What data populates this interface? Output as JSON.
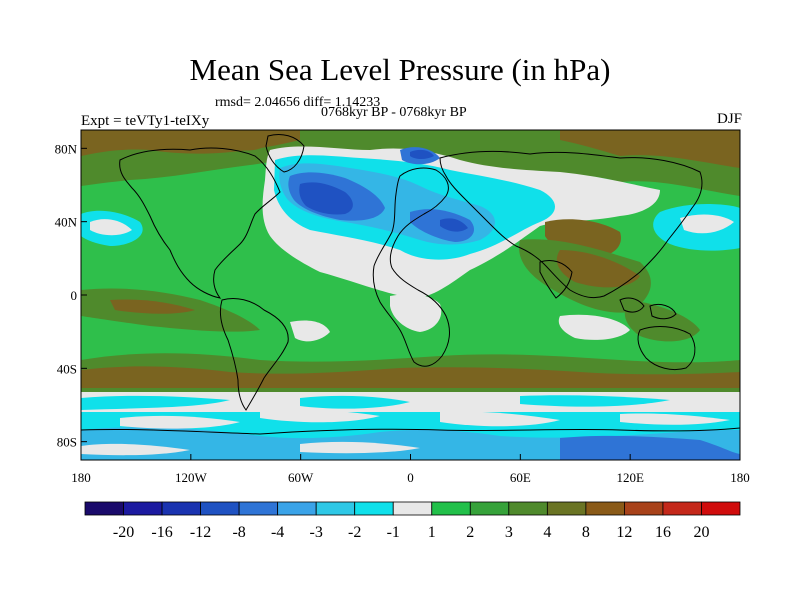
{
  "title": "Mean Sea Level Pressure (in hPa)",
  "stats": "rmsd= 2.04656 diff= 1.14233",
  "experiment": "Expt = teVTy1-teIXy",
  "period": "0768kyr BP - 0768kyr BP",
  "season": "DJF",
  "x_ticks": [
    "180",
    "120W",
    "60W",
    "0",
    "60E",
    "120E",
    "180"
  ],
  "y_ticks": [
    "80N",
    "40N",
    "0",
    "40S",
    "80S"
  ],
  "colorbar": {
    "colors": [
      "#1a0a6b",
      "#1c1aa0",
      "#1a33b0",
      "#1f52c2",
      "#2f74d6",
      "#3aa3e8",
      "#2ec8e6",
      "#10e0ea",
      "#e8e8e8",
      "#22c04a",
      "#36a23a",
      "#4f8a2c",
      "#6a7424",
      "#8a5a18",
      "#a8421a",
      "#c4281a",
      "#d00c0c"
    ],
    "labels": [
      "-20",
      "-16",
      "-12",
      "-8",
      "-4",
      "-3",
      "-2",
      "-1",
      "1",
      "2",
      "3",
      "4",
      "8",
      "12",
      "16",
      "20"
    ]
  },
  "map_colors": {
    "green": "#2fbf4b",
    "olive": "#4f8a2c",
    "brown": "#7a6420",
    "white": "#e8e8e8",
    "cyan": "#10e0ea",
    "sky": "#34b6e6",
    "blue": "#2f74d6",
    "navy": "#1f52c2"
  }
}
